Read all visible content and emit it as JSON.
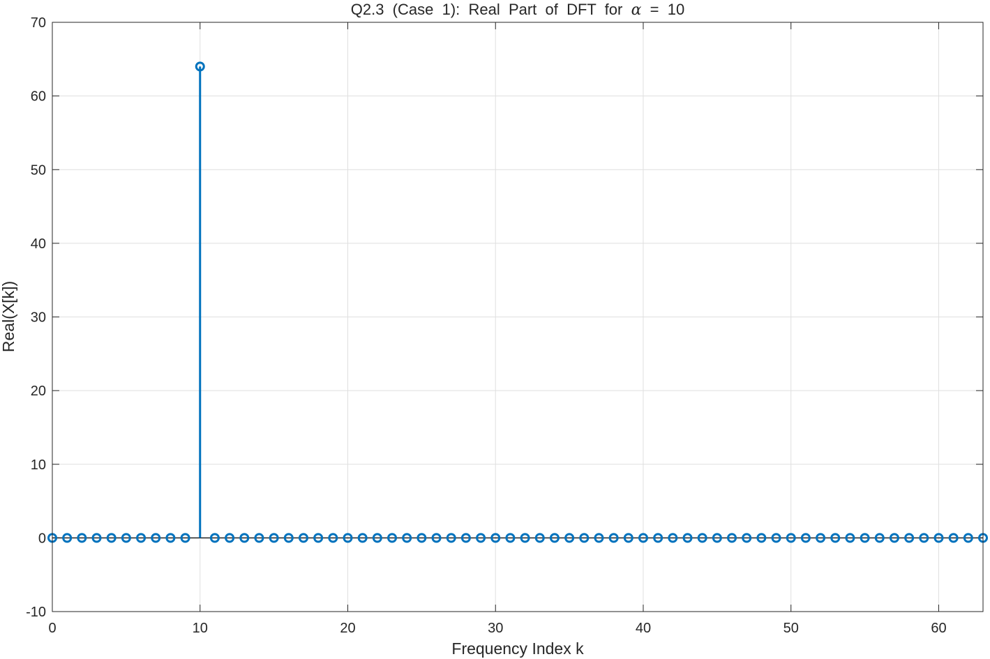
{
  "chart_data": {
    "type": "stem",
    "title": {
      "prefix": "Q2.3  (Case  1):  Real  Part  of  DFT  for  ",
      "symbol": "α",
      "suffix": "  =  10"
    },
    "xlabel": "Frequency Index k",
    "ylabel": "Real(X[k])",
    "xlim": [
      0,
      63
    ],
    "ylim": [
      -10,
      70
    ],
    "x_ticks": [
      0,
      10,
      20,
      30,
      40,
      50,
      60
    ],
    "x_tick_labels": [
      "0",
      "10",
      "20",
      "30",
      "40",
      "50",
      "60"
    ],
    "y_ticks": [
      -10,
      0,
      10,
      20,
      30,
      40,
      50,
      60,
      70
    ],
    "y_tick_labels": [
      "-10",
      "0",
      "10",
      "20",
      "30",
      "40",
      "50",
      "60",
      "70"
    ],
    "grid": true,
    "series": [
      {
        "x": [
          0,
          1,
          2,
          3,
          4,
          5,
          6,
          7,
          8,
          9,
          10,
          11,
          12,
          13,
          14,
          15,
          16,
          17,
          18,
          19,
          20,
          21,
          22,
          23,
          24,
          25,
          26,
          27,
          28,
          29,
          30,
          31,
          32,
          33,
          34,
          35,
          36,
          37,
          38,
          39,
          40,
          41,
          42,
          43,
          44,
          45,
          46,
          47,
          48,
          49,
          50,
          51,
          52,
          53,
          54,
          55,
          56,
          57,
          58,
          59,
          60,
          61,
          62,
          63
        ],
        "values": [
          0,
          0,
          0,
          0,
          0,
          0,
          0,
          0,
          0,
          0,
          64,
          0,
          0,
          0,
          0,
          0,
          0,
          0,
          0,
          0,
          0,
          0,
          0,
          0,
          0,
          0,
          0,
          0,
          0,
          0,
          0,
          0,
          0,
          0,
          0,
          0,
          0,
          0,
          0,
          0,
          0,
          0,
          0,
          0,
          0,
          0,
          0,
          0,
          0,
          0,
          0,
          0,
          0,
          0,
          0,
          0,
          0,
          0,
          0,
          0,
          0,
          0,
          0,
          0
        ],
        "color": "#0072BD",
        "marker": "circle-open"
      }
    ]
  }
}
